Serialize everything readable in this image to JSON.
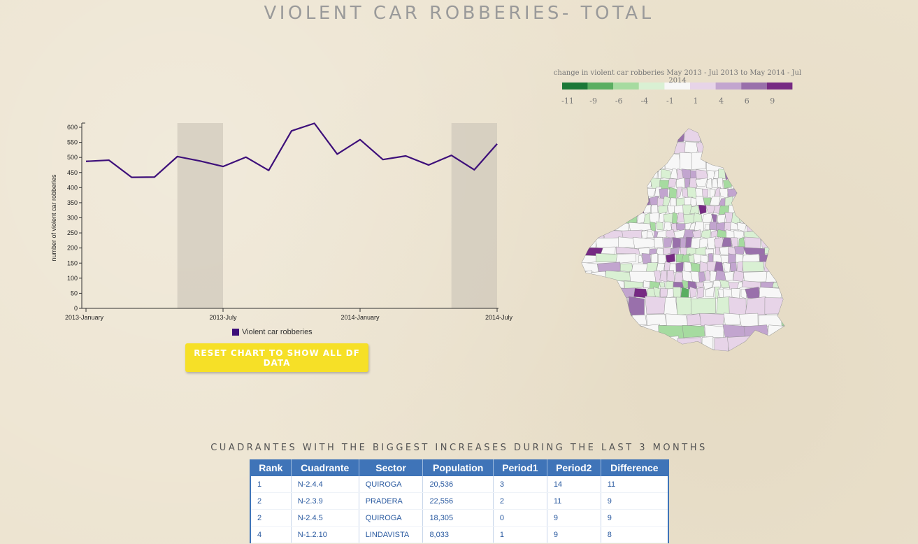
{
  "page": {
    "title": "VIOLENT CAR ROBBERIES- TOTAL"
  },
  "chart_data": {
    "type": "line",
    "title": "",
    "xlabel": "",
    "ylabel": "number of violent car robberies",
    "ylim": [
      0,
      600
    ],
    "yticks": [
      0,
      50,
      100,
      150,
      200,
      250,
      300,
      350,
      400,
      450,
      500,
      550,
      600
    ],
    "x_tick_labels": [
      "2013-January",
      "2013-July",
      "2014-January",
      "2014-July"
    ],
    "x": [
      "2013-01",
      "2013-02",
      "2013-03",
      "2013-04",
      "2013-05",
      "2013-06",
      "2013-07",
      "2013-08",
      "2013-09",
      "2013-10",
      "2013-11",
      "2013-12",
      "2014-01",
      "2014-02",
      "2014-03",
      "2014-04",
      "2014-05",
      "2014-06",
      "2014-07"
    ],
    "series": [
      {
        "name": "Violent car robberies",
        "color": "#3d0f7a",
        "values": [
          487,
          491,
          434,
          435,
          503,
          488,
          470,
          501,
          457,
          588,
          613,
          511,
          559,
          493,
          505,
          475,
          507,
          459,
          545
        ]
      }
    ],
    "highlight_ranges": [
      [
        "2013-05",
        "2013-07"
      ],
      [
        "2014-05",
        "2014-07"
      ]
    ],
    "grid": false,
    "legend": "bottom"
  },
  "reset_button": {
    "label": "RESET CHART TO SHOW ALL DF DATA"
  },
  "color_scale": {
    "title": "change in violent car robberies May 2013 - Jul 2013 to May 2014 - Jul 2014",
    "labels": [
      "-11",
      "-9",
      "-6",
      "-4",
      "-1",
      "1",
      "4",
      "6",
      "9"
    ],
    "colors": [
      "#1b7837",
      "#5aae61",
      "#a6dba0",
      "#d9f0d3",
      "#f7f7f7",
      "#e7d4e8",
      "#c2a5cf",
      "#9970ab",
      "#762a83"
    ]
  },
  "table": {
    "title": "CUADRANTES WITH THE BIGGEST INCREASES DURING THE LAST 3 MONTHS",
    "header_color": "#3f74b8",
    "columns": [
      "Rank",
      "Cuadrante",
      "Sector",
      "Population",
      "Period1",
      "Period2",
      "Difference"
    ],
    "rows": [
      [
        "1",
        "N-2.4.4",
        "QUIROGA",
        "20,536",
        "3",
        "14",
        "11"
      ],
      [
        "2",
        "N-2.3.9",
        "PRADERA",
        "22,556",
        "2",
        "11",
        "9"
      ],
      [
        "2",
        "N-2.4.5",
        "QUIROGA",
        "18,305",
        "0",
        "9",
        "9"
      ],
      [
        "4",
        "N-1.2.10",
        "LINDAVISTA",
        "8,033",
        "1",
        "9",
        "8"
      ]
    ]
  }
}
